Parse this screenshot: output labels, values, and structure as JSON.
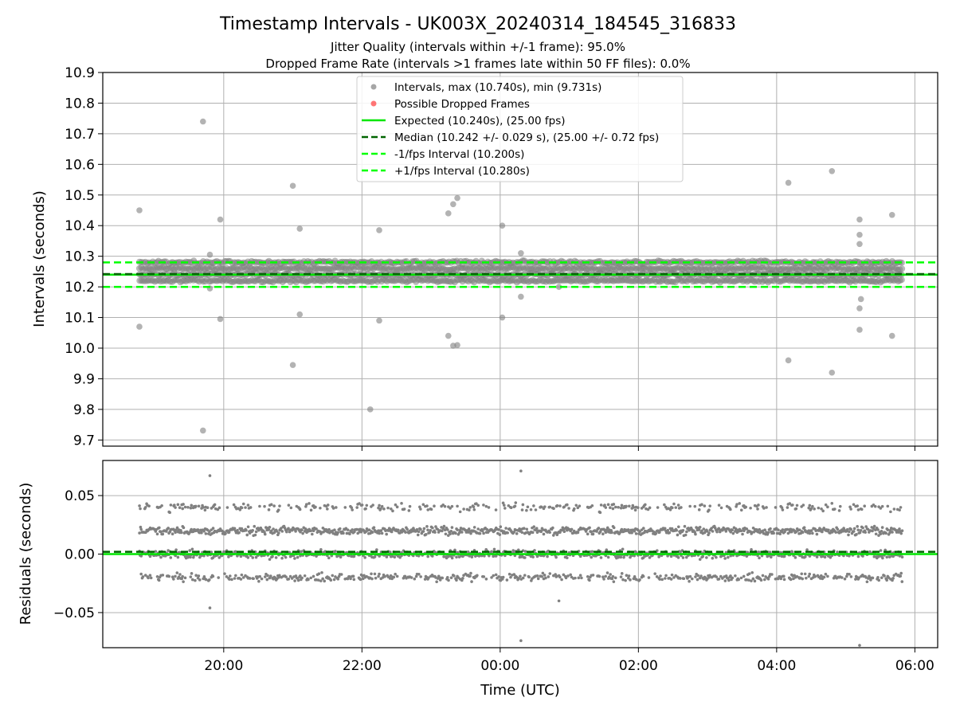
{
  "chart_data": [
    {
      "type": "scatter",
      "title": "Timestamp Intervals - UK003X_20240314_184545_316833",
      "subtitle_lines": [
        "Jitter Quality (intervals within +/-1 frame): 95.0%",
        "Dropped Frame Rate (intervals >1 frames late within 50 FF files): 0.0%"
      ],
      "ylabel": "Intervals (seconds)",
      "ylim": [
        9.68,
        10.9
      ],
      "yticks": [
        9.7,
        9.8,
        9.9,
        10.0,
        10.1,
        10.2,
        10.3,
        10.4,
        10.5,
        10.6,
        10.7,
        10.8,
        10.9
      ],
      "ytick_labels": [
        "9.7",
        "9.8",
        "9.9",
        "10.0",
        "10.1",
        "10.2",
        "10.3",
        "10.4",
        "10.5",
        "10.6",
        "10.7",
        "10.8",
        "10.9"
      ],
      "xlim_hours": [
        -5.75,
        6.33
      ],
      "xticks_hours": [
        -4,
        -2,
        0,
        2,
        4,
        6
      ],
      "grid": true,
      "legend_position": "top-center",
      "legend": [
        {
          "label": "Intervals, max (10.740s), min (9.731s)",
          "kind": "marker",
          "color": "#808080"
        },
        {
          "label": "Possible Dropped Frames",
          "kind": "marker",
          "color": "#ff3b3b"
        },
        {
          "label": "Expected (10.240s), (25.00 fps)",
          "kind": "solid",
          "color": "#00e600"
        },
        {
          "label": "Median (10.242 +/- 0.029 s), (25.00 +/- 0.72 fps)",
          "kind": "dashed",
          "color": "#006400"
        },
        {
          "label": "-1/fps Interval (10.200s)",
          "kind": "dashed",
          "color": "#00ff00"
        },
        {
          "label": "+1/fps Interval (10.280s)",
          "kind": "dashed",
          "color": "#00ff00"
        }
      ],
      "reference_lines": [
        {
          "name": "expected",
          "y": 10.24,
          "color": "#00e600",
          "dash": false
        },
        {
          "name": "median",
          "y": 10.242,
          "color": "#006400",
          "dash": true
        },
        {
          "name": "minus-one-fps",
          "y": 10.2,
          "color": "#00ff00",
          "dash": true
        },
        {
          "name": "plus-one-fps",
          "y": 10.28,
          "color": "#00ff00",
          "dash": true
        }
      ],
      "series_color": "#808080",
      "data_range_hours": [
        -5.22,
        5.82
      ],
      "band_levels": [
        10.22,
        10.24,
        10.26,
        10.28
      ],
      "outliers": [
        {
          "x": -5.22,
          "y": 10.45
        },
        {
          "x": -5.22,
          "y": 10.07
        },
        {
          "x": -4.3,
          "y": 10.74
        },
        {
          "x": -4.3,
          "y": 9.731
        },
        {
          "x": -4.2,
          "y": 10.305
        },
        {
          "x": -4.2,
          "y": 10.195
        },
        {
          "x": -4.05,
          "y": 10.42
        },
        {
          "x": -4.05,
          "y": 10.095
        },
        {
          "x": -3.0,
          "y": 10.53
        },
        {
          "x": -3.0,
          "y": 9.945
        },
        {
          "x": -2.9,
          "y": 10.39
        },
        {
          "x": -2.9,
          "y": 10.11
        },
        {
          "x": -1.88,
          "y": 9.8
        },
        {
          "x": -1.75,
          "y": 10.385
        },
        {
          "x": -1.75,
          "y": 10.09
        },
        {
          "x": -0.75,
          "y": 10.44
        },
        {
          "x": -0.75,
          "y": 10.04
        },
        {
          "x": -0.68,
          "y": 10.47
        },
        {
          "x": -0.68,
          "y": 10.008
        },
        {
          "x": -0.62,
          "y": 10.49
        },
        {
          "x": -0.62,
          "y": 10.01
        },
        {
          "x": 0.03,
          "y": 10.4
        },
        {
          "x": 0.03,
          "y": 10.1
        },
        {
          "x": 0.3,
          "y": 10.31
        },
        {
          "x": 0.3,
          "y": 10.168
        },
        {
          "x": 0.85,
          "y": 10.2
        },
        {
          "x": 4.17,
          "y": 10.54
        },
        {
          "x": 4.17,
          "y": 9.96
        },
        {
          "x": 4.8,
          "y": 10.578
        },
        {
          "x": 4.8,
          "y": 9.92
        },
        {
          "x": 5.2,
          "y": 10.42
        },
        {
          "x": 5.2,
          "y": 10.37
        },
        {
          "x": 5.2,
          "y": 10.34
        },
        {
          "x": 5.22,
          "y": 10.16
        },
        {
          "x": 5.2,
          "y": 10.13
        },
        {
          "x": 5.2,
          "y": 10.06
        },
        {
          "x": 5.67,
          "y": 10.435
        },
        {
          "x": 5.67,
          "y": 10.04
        }
      ]
    },
    {
      "type": "scatter",
      "xlabel": "Time (UTC)",
      "ylabel": "Residuals (seconds)",
      "ylim": [
        -0.08,
        0.08
      ],
      "yticks": [
        -0.05,
        0.0,
        0.05
      ],
      "ytick_labels": [
        "−0.05",
        "0.00",
        "0.05"
      ],
      "xlim_hours": [
        -5.75,
        6.33
      ],
      "xticks_hours": [
        -4,
        -2,
        0,
        2,
        4,
        6
      ],
      "xtick_labels": [
        "20:00",
        "22:00",
        "00:00",
        "02:00",
        "04:00",
        "06:00"
      ],
      "grid": true,
      "reference_lines": [
        {
          "name": "zero",
          "y": 0.0,
          "color": "#00e600",
          "dash": false
        },
        {
          "name": "median-residual",
          "y": 0.002,
          "color": "#006400",
          "dash": true
        }
      ],
      "series_color": "#808080",
      "data_range_hours": [
        -5.22,
        5.82
      ],
      "band_levels": [
        0.04,
        0.02,
        0.0,
        -0.02
      ],
      "outliers": [
        {
          "x": -4.2,
          "y": 0.067
        },
        {
          "x": -4.2,
          "y": -0.046
        },
        {
          "x": 0.3,
          "y": 0.071
        },
        {
          "x": 0.3,
          "y": -0.074
        },
        {
          "x": 0.85,
          "y": -0.04
        },
        {
          "x": 5.2,
          "y": -0.078
        }
      ]
    }
  ]
}
